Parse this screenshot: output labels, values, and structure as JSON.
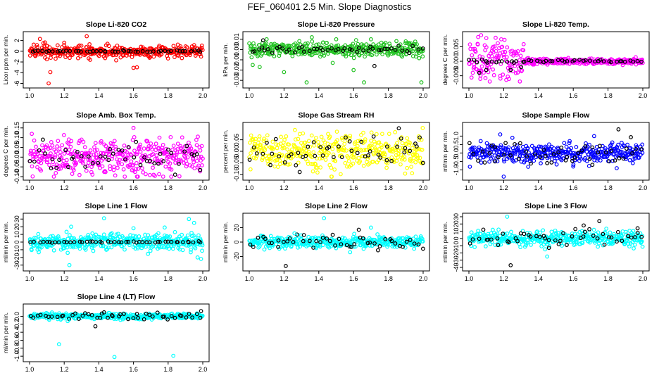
{
  "title": "FEF_060401  2.5 Min. Slope Diagnostics",
  "colors": {
    "red": "#ff0000",
    "green": "#22c222",
    "magenta": "#ff00ff",
    "yellow": "#ffff00",
    "blue": "#0000ff",
    "cyan": "#00ffff",
    "black": "#000000"
  },
  "chart_data": [
    {
      "type": "scatter",
      "title": "Slope Li-820 CO2",
      "ylabel": "Licor ppm per min.",
      "xlim": [
        1.0,
        2.0
      ],
      "ylim": [
        -6.2,
        3.0
      ],
      "xticks": [
        "1.0",
        "1.2",
        "1.4",
        "1.6",
        "1.8",
        "2.0"
      ],
      "yticks": [
        {
          "v": 2,
          "label": "2"
        },
        {
          "v": 0,
          "label": "0"
        },
        {
          "v": -2,
          "label": "-2"
        },
        {
          "v": -4,
          "label": "-4"
        },
        {
          "v": -6,
          "label": "-6"
        }
      ],
      "main_color": "#ff0000",
      "main_sd": 0.55,
      "black_sd": 0.08,
      "series": [
        {
          "name": "red",
          "color": "#ff0000",
          "values": [
            [
              1.06,
              2.3
            ],
            [
              1.08,
              1.5
            ],
            [
              1.1,
              -1.5
            ],
            [
              1.12,
              -3.9
            ],
            [
              1.11,
              -6.0
            ],
            [
              1.2,
              1.6
            ],
            [
              1.22,
              -0.8
            ],
            [
              1.33,
              2.8
            ],
            [
              1.35,
              -1.6
            ],
            [
              1.5,
              -1.7
            ],
            [
              1.62,
              -3.0
            ],
            [
              1.6,
              -3.1
            ],
            [
              1.45,
              1.4
            ],
            [
              1.28,
              -1.3
            ]
          ]
        },
        {
          "name": "black",
          "color": "#000000",
          "values": []
        }
      ]
    },
    {
      "type": "scatter",
      "title": "Slope Li-820 Pressure",
      "ylabel": "kPa per min.",
      "xlim": [
        1.0,
        2.0
      ],
      "ylim": [
        -0.034,
        0.014
      ],
      "xticks": [
        "1.0",
        "1.2",
        "1.4",
        "1.6",
        "1.8",
        "2.0"
      ],
      "yticks": [
        {
          "v": 0.01,
          "label": "0.01"
        },
        {
          "v": 0.0,
          "label": "0.00"
        },
        {
          "v": -0.01,
          "label": "-0.01"
        },
        {
          "v": -0.02,
          "label": "-0.02"
        },
        {
          "v": -0.03,
          "label": "-0.03"
        }
      ],
      "main_color": "#22c222",
      "main_sd": 0.0035,
      "black_sd": 0.0015,
      "series": [
        {
          "name": "green",
          "color": "#22c222",
          "values": [
            [
              1.02,
              -0.015
            ],
            [
              1.06,
              -0.017
            ],
            [
              1.1,
              0.01
            ],
            [
              1.33,
              -0.032
            ],
            [
              1.66,
              -0.032
            ],
            [
              1.99,
              -0.032
            ],
            [
              1.36,
              0.012
            ],
            [
              1.5,
              0.01
            ],
            [
              1.7,
              0.01
            ],
            [
              1.9,
              0.008
            ],
            [
              1.2,
              -0.022
            ],
            [
              1.6,
              -0.02
            ],
            [
              1.48,
              -0.013
            ]
          ]
        },
        {
          "name": "black",
          "color": "#000000",
          "values": [
            [
              1.08,
              0.009
            ],
            [
              1.72,
              -0.016
            ]
          ]
        }
      ]
    },
    {
      "type": "scatter",
      "title": "Slope Li-820 Temp.",
      "ylabel": "degrees C per min.",
      "xlim": [
        1.0,
        2.0
      ],
      "ylim": [
        -0.008,
        0.009
      ],
      "xticks": [
        "1.0",
        "1.2",
        "1.4",
        "1.6",
        "1.8",
        "2.0"
      ],
      "yticks": [
        {
          "v": 0.005,
          "label": "0.005"
        },
        {
          "v": 0.0,
          "label": "0.000"
        },
        {
          "v": -0.005,
          "label": "-0.005"
        }
      ],
      "main_color": "#ff00ff",
      "main_sd": 0.0005,
      "black_sd": 0.0003,
      "settle": {
        "until": 1.32,
        "sd": 0.0035
      },
      "series": [
        {
          "name": "magenta",
          "color": "#ff00ff",
          "values": [
            [
              1.07,
              0.009
            ],
            [
              1.1,
              0.008
            ],
            [
              1.12,
              -0.007
            ],
            [
              1.05,
              0.006
            ],
            [
              1.18,
              -0.005
            ],
            [
              1.03,
              -0.002
            ],
            [
              1.14,
              0.005
            ]
          ]
        },
        {
          "name": "black",
          "color": "#000000",
          "values": [
            [
              1.06,
              -0.004
            ],
            [
              1.1,
              -0.003
            ],
            [
              1.24,
              -0.003
            ],
            [
              1.3,
              -0.002
            ]
          ]
        }
      ]
    },
    {
      "type": "scatter",
      "title": "Slope Amb. Box Temp.",
      "ylabel": "degrees C per min.",
      "xlim": [
        1.0,
        2.0
      ],
      "ylim": [
        -0.1,
        0.16
      ],
      "xticks": [
        "1.0",
        "1.2",
        "1.4",
        "1.6",
        "1.8",
        "2.0"
      ],
      "yticks": [
        {
          "v": 0.15,
          "label": "0.15"
        },
        {
          "v": 0.1,
          "label": "0.10"
        },
        {
          "v": 0.05,
          "label": "0.05"
        },
        {
          "v": 0.0,
          "label": "0.00"
        },
        {
          "v": -0.05,
          "label": "-0.05"
        },
        {
          "v": -0.1,
          "label": "-0.10"
        }
      ],
      "main_color": "#ff00ff",
      "main_sd": 0.045,
      "black_sd": 0.035,
      "series": [
        {
          "name": "magenta",
          "color": "#ff00ff",
          "values": [
            [
              1.6,
              0.15
            ],
            [
              1.62,
              -0.11
            ],
            [
              1.3,
              0.09
            ],
            [
              1.75,
              0.1
            ]
          ]
        },
        {
          "name": "black",
          "color": "#000000",
          "values": []
        }
      ]
    },
    {
      "type": "scatter",
      "title": "Slope Gas Stream RH",
      "ylabel": "percent per min.",
      "xlim": [
        1.0,
        2.0
      ],
      "ylim": [
        -0.11,
        0.11
      ],
      "xticks": [
        "1.0",
        "1.2",
        "1.4",
        "1.6",
        "1.8",
        "2.0"
      ],
      "yticks": [
        {
          "v": 0.05,
          "label": "0.05"
        },
        {
          "v": 0.0,
          "label": "0.00"
        },
        {
          "v": -0.05,
          "label": "-0.05"
        },
        {
          "v": -0.1,
          "label": "-0.10"
        }
      ],
      "main_color": "#ffff00",
      "main_sd": 0.04,
      "black_sd": 0.035,
      "series": [
        {
          "name": "yellow",
          "color": "#ffff00",
          "values": []
        },
        {
          "name": "black",
          "color": "#000000",
          "values": [
            [
              1.86,
              0.1
            ],
            [
              1.29,
              -0.09
            ],
            [
              1.98,
              0.06
            ]
          ]
        }
      ]
    },
    {
      "type": "scatter",
      "title": "Slope Sample Flow",
      "ylabel": "ml/min per min.",
      "xlim": [
        1.0,
        2.0
      ],
      "ylim": [
        -1.4,
        1.6
      ],
      "xticks": [
        "1.0",
        "1.2",
        "1.4",
        "1.6",
        "1.8",
        "2.0"
      ],
      "yticks": [
        {
          "v": 1.0,
          "label": "1.0"
        },
        {
          "v": 0.5,
          "label": "0.5"
        },
        {
          "v": 0.0,
          "label": "0.0"
        },
        {
          "v": -0.5,
          "label": "-0.5"
        },
        {
          "v": -1.0,
          "label": "-1.0"
        }
      ],
      "main_color": "#0000ff",
      "main_sd": 0.28,
      "black_sd": 0.3,
      "series": [
        {
          "name": "blue",
          "color": "#0000ff",
          "values": [
            [
              1.2,
              -1.4
            ],
            [
              1.18,
              1.1
            ],
            [
              1.25,
              0.9
            ],
            [
              1.72,
              1.0
            ],
            [
              1.6,
              -0.8
            ],
            [
              1.85,
              -0.9
            ]
          ]
        },
        {
          "name": "black",
          "color": "#000000",
          "values": [
            [
              1.86,
              1.4
            ],
            [
              1.45,
              -0.6
            ],
            [
              1.15,
              -0.5
            ],
            [
              1.71,
              -0.7
            ]
          ]
        }
      ]
    },
    {
      "type": "scatter",
      "title": "Slope Line 1 Flow",
      "ylabel": "ml/min per min.",
      "xlim": [
        1.0,
        2.0
      ],
      "ylim": [
        -33,
        33
      ],
      "xticks": [
        "1.0",
        "1.2",
        "1.4",
        "1.6",
        "1.8",
        "2.0"
      ],
      "yticks": [
        {
          "v": 30,
          "label": "30"
        },
        {
          "v": 20,
          "label": "20"
        },
        {
          "v": 10,
          "label": "10"
        },
        {
          "v": 0,
          "label": "0"
        },
        {
          "v": -10,
          "label": "-10"
        },
        {
          "v": -20,
          "label": "-20"
        },
        {
          "v": -30,
          "label": "-30"
        }
      ],
      "main_color": "#00ffff",
      "main_sd": 5.5,
      "black_sd": 0.4,
      "series": [
        {
          "name": "cyan",
          "color": "#00ffff",
          "values": [
            [
              1.23,
              -30
            ],
            [
              1.43,
              31
            ],
            [
              1.92,
              30
            ],
            [
              1.22,
              -14
            ],
            [
              1.99,
              -22
            ],
            [
              1.24,
              20
            ],
            [
              1.6,
              18
            ],
            [
              1.78,
              19
            ],
            [
              1.95,
              25
            ],
            [
              1.97,
              -20
            ]
          ]
        },
        {
          "name": "black",
          "color": "#000000",
          "values": []
        }
      ]
    },
    {
      "type": "scatter",
      "title": "Slope Line 2 Flow",
      "ylabel": "ml/min per min.",
      "xlim": [
        1.0,
        2.0
      ],
      "ylim": [
        -35,
        35
      ],
      "xticks": [
        "1.0",
        "1.2",
        "1.4",
        "1.6",
        "1.8",
        "2.0"
      ],
      "yticks": [
        {
          "v": 20,
          "label": "20"
        },
        {
          "v": 0,
          "label": "0"
        },
        {
          "v": -20,
          "label": "-20"
        }
      ],
      "main_color": "#00ffff",
      "main_sd": 4,
      "black_sd": 5,
      "series": [
        {
          "name": "cyan",
          "color": "#00ffff",
          "values": [
            [
              1.43,
              33
            ],
            [
              1.7,
              20
            ],
            [
              1.26,
              12
            ],
            [
              1.58,
              -14
            ]
          ]
        },
        {
          "name": "black",
          "color": "#000000",
          "values": [
            [
              1.21,
              -33
            ],
            [
              1.63,
              17
            ],
            [
              1.48,
              10
            ]
          ]
        }
      ]
    },
    {
      "type": "scatter",
      "title": "Slope Line 3 Flow",
      "ylabel": "ml/min per min.",
      "xlim": [
        1.0,
        2.0
      ],
      "ylim": [
        -40,
        30
      ],
      "xticks": [
        "1.0",
        "1.2",
        "1.4",
        "1.6",
        "1.8",
        "2.0"
      ],
      "yticks": [
        {
          "v": 30,
          "label": "30"
        },
        {
          "v": 20,
          "label": "20"
        },
        {
          "v": 10,
          "label": "10"
        },
        {
          "v": 0,
          "label": "0"
        },
        {
          "v": -10,
          "label": "-10"
        },
        {
          "v": -20,
          "label": "-20"
        },
        {
          "v": -30,
          "label": "-30"
        },
        {
          "v": -40,
          "label": "-40"
        }
      ],
      "main_color": "#00ffff",
      "main_sd": 5,
      "black_sd": 6,
      "series": [
        {
          "name": "cyan",
          "color": "#00ffff",
          "values": [
            [
              1.22,
              30
            ],
            [
              1.45,
              -25
            ],
            [
              1.99,
              -5
            ]
          ]
        },
        {
          "name": "black",
          "color": "#000000",
          "values": [
            [
              1.24,
              -37
            ],
            [
              1.75,
              24
            ],
            [
              1.66,
              18
            ],
            [
              1.97,
              14
            ],
            [
              1.46,
              -13
            ]
          ]
        }
      ]
    },
    {
      "type": "scatter",
      "title": "Slope Line 4 (LT) Flow",
      "ylabel": "ml/min per min.",
      "xlim": [
        1.0,
        2.0
      ],
      "ylim": [
        -1.05,
        0.22
      ],
      "xticks": [
        "1.0",
        "1.2",
        "1.4",
        "1.6",
        "1.8",
        "2.0"
      ],
      "yticks": [
        {
          "v": 0.0,
          "label": "0.0"
        },
        {
          "v": -0.2,
          "label": "-0.2"
        },
        {
          "v": -0.4,
          "label": "-0.4"
        },
        {
          "v": -0.6,
          "label": "-0.6"
        },
        {
          "v": -0.8,
          "label": "-0.8"
        },
        {
          "v": -1.0,
          "label": "-1.0"
        }
      ],
      "main_color": "#00ffff",
      "main_sd": 0.035,
      "black_sd": 0.04,
      "series": [
        {
          "name": "cyan",
          "color": "#00ffff",
          "values": [
            [
              1.17,
              -0.7
            ],
            [
              1.49,
              -1.02
            ],
            [
              1.83,
              -0.99
            ],
            [
              1.22,
              -0.12
            ]
          ]
        },
        {
          "name": "black",
          "color": "#000000",
          "values": [
            [
              1.38,
              -0.25
            ],
            [
              1.99,
              0.13
            ],
            [
              1.43,
              0.1
            ]
          ]
        }
      ]
    }
  ]
}
